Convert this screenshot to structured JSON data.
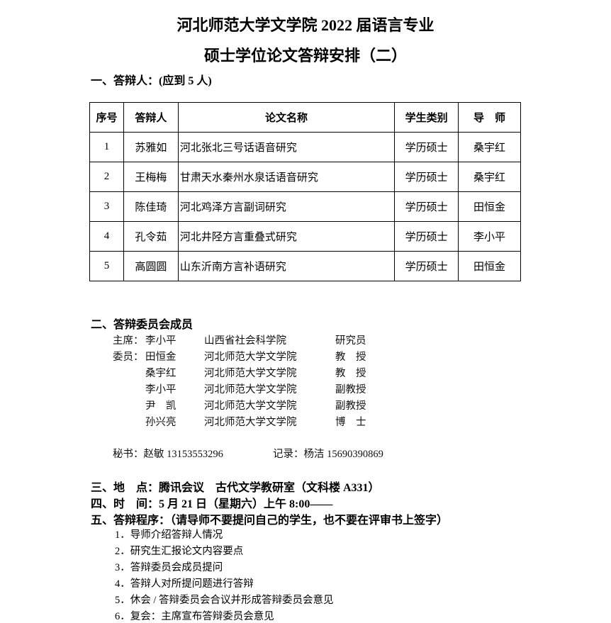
{
  "title_line1": "河北师范大学文学院 2022 届语言专业",
  "title_line2": "硕士学位论文答辩安排（二）",
  "section1": "一、答辩人：(应到 5 人)",
  "table": {
    "headers": [
      "序号",
      "答辩人",
      "论文名称",
      "学生类别",
      "导　师"
    ],
    "rows": [
      [
        "1",
        "苏雅如",
        "河北张北三号话语音研究",
        "学历硕士",
        "桑宇红"
      ],
      [
        "2",
        "王梅梅",
        "甘肃天水秦州水泉话语音研究",
        "学历硕士",
        "桑宇红"
      ],
      [
        "3",
        "陈佳琦",
        "河北鸡泽方言副词研究",
        "学历硕士",
        "田恒金"
      ],
      [
        "4",
        "孔令茹",
        "河北井陉方言重叠式研究",
        "学历硕士",
        "李小平"
      ],
      [
        "5",
        "高圆圆",
        "山东沂南方言补语研究",
        "学历硕士",
        "田恒金"
      ]
    ]
  },
  "section2": "二、答辩委员会成员",
  "committee": [
    {
      "role": "主席：",
      "name": "李小平",
      "org": "山西省社会科学院",
      "title": "研究员"
    },
    {
      "role": "委员：",
      "name": "田恒金",
      "org": "河北师范大学文学院",
      "title": "教　授"
    },
    {
      "role": "",
      "name": "桑宇红",
      "org": "河北师范大学文学院",
      "title": "教　授"
    },
    {
      "role": "",
      "name": "李小平",
      "org": "河北师范大学文学院",
      "title": "副教授"
    },
    {
      "role": "",
      "name": "尹　凯",
      "org": "河北师范大学文学院",
      "title": "副教授"
    },
    {
      "role": "",
      "name": "孙兴亮",
      "org": "河北师范大学文学院",
      "title": "博　士"
    }
  ],
  "secretary": "秘书：赵敏 13153553296",
  "recorder": "记录：杨洁 15690390869",
  "section3": "三、地　点：腾讯会议　古代文学教研室（文科楼 A331）",
  "section4": "四、时　间：5 月 21 日（星期六）上午 8:00——",
  "section5": "五、答辩程序：（请导师不要提问自己的学生，也不要在评审书上签字）",
  "procedure": [
    "1．导师介绍答辩人情况",
    "2．研究生汇报论文内容要点",
    "3．答辩委员会成员提问",
    "4．答辩人对所提问题进行答辩",
    "5．休会 / 答辩委员会合议并形成答辩委员会意见",
    "6．复会：主席宣布答辩委员会意见"
  ]
}
